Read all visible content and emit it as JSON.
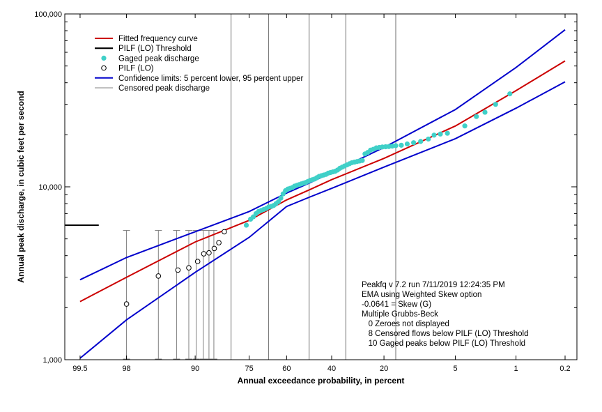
{
  "chart_data": {
    "type": "scatter",
    "title": "",
    "xlabel": "Annual exceedance probability, in percent",
    "ylabel": "Annual peak discharge, in cubic feet per second",
    "x_scale": "normal-probability",
    "x_reversed": true,
    "xlim": [
      99.7,
      0.13
    ],
    "x_ticks": [
      {
        "value": 99.5,
        "label": "99.5"
      },
      {
        "value": 98,
        "label": "98"
      },
      {
        "value": 90,
        "label": "90"
      },
      {
        "value": 75,
        "label": "75"
      },
      {
        "value": 60,
        "label": "60"
      },
      {
        "value": 40,
        "label": "40"
      },
      {
        "value": 20,
        "label": "20"
      },
      {
        "value": 5,
        "label": "5"
      },
      {
        "value": 1,
        "label": "1"
      },
      {
        "value": 0.2,
        "label": "0.2"
      }
    ],
    "y_scale": "log",
    "ylim": [
      1000,
      100000
    ],
    "y_ticks": [
      {
        "value": 1000,
        "label": "1,000"
      },
      {
        "value": 10000,
        "label": "10,000"
      },
      {
        "value": 100000,
        "label": "100,000"
      }
    ],
    "legend": {
      "placement": "top-left",
      "entries": [
        {
          "label": "Fitted frequency curve",
          "color": "#cc0000",
          "kind": "line"
        },
        {
          "label": "PILF (LO) Threshold",
          "color": "#000000",
          "kind": "thickline"
        },
        {
          "label": "Gaged peak discharge",
          "color": "#40d0c8",
          "kind": "dot"
        },
        {
          "label": "PILF (LO)",
          "color": "#000000",
          "kind": "circle"
        },
        {
          "label": "Confidence limits: 5 percent lower, 95 percent upper",
          "color": "#0000cc",
          "kind": "line"
        },
        {
          "label": "Censored peak discharge",
          "color": "#808080",
          "kind": "thinline"
        }
      ]
    },
    "series": [
      {
        "name": "Fitted frequency curve",
        "color": "#cc0000",
        "points": [
          [
            99.5,
            2170
          ],
          [
            98,
            3000
          ],
          [
            90,
            4800
          ],
          [
            75,
            6400
          ],
          [
            60,
            8400
          ],
          [
            50,
            9600
          ],
          [
            40,
            11000
          ],
          [
            20,
            14600
          ],
          [
            5,
            22500
          ],
          [
            1,
            36000
          ],
          [
            0.2,
            53500
          ]
        ]
      },
      {
        "name": "Confidence limits: 5 percent lower, 95 percent upper",
        "color": "#0000cc",
        "points": [
          [
            99.5,
            1020
          ],
          [
            98,
            1700
          ],
          [
            90,
            3200
          ],
          [
            75,
            5100
          ],
          [
            60,
            7700
          ],
          [
            50,
            8700
          ],
          [
            40,
            9800
          ],
          [
            20,
            13000
          ],
          [
            5,
            19000
          ],
          [
            1,
            28500
          ],
          [
            0.2,
            40500
          ]
        ]
      },
      {
        "name": "upper-confidence-limit",
        "color": "#0000cc",
        "points": [
          [
            99.5,
            2900
          ],
          [
            98,
            3900
          ],
          [
            90,
            5500
          ],
          [
            75,
            7200
          ],
          [
            60,
            9200
          ],
          [
            50,
            10500
          ],
          [
            40,
            12100
          ],
          [
            20,
            16900
          ],
          [
            5,
            28000
          ],
          [
            1,
            49000
          ],
          [
            0.2,
            81000
          ]
        ]
      },
      {
        "name": "Gaged peak discharge",
        "color": "#40d0c8",
        "points": [
          [
            76,
            6000
          ],
          [
            74.5,
            6500
          ],
          [
            73.5,
            6700
          ],
          [
            72.5,
            7000
          ],
          [
            71.5,
            7200
          ],
          [
            70.5,
            7300
          ],
          [
            69.5,
            7400
          ],
          [
            68.5,
            7500
          ],
          [
            67.5,
            7650
          ],
          [
            66.5,
            7700
          ],
          [
            65.5,
            7800
          ],
          [
            64.5,
            8000
          ],
          [
            63.5,
            8200
          ],
          [
            62.5,
            8600
          ],
          [
            61.5,
            9100
          ],
          [
            60.5,
            9500
          ],
          [
            59.5,
            9700
          ],
          [
            58.5,
            9800
          ],
          [
            57.5,
            9900
          ],
          [
            56.5,
            10100
          ],
          [
            55.5,
            10200
          ],
          [
            54.5,
            10300
          ],
          [
            53.5,
            10400
          ],
          [
            52.5,
            10500
          ],
          [
            51.5,
            10600
          ],
          [
            50.5,
            10750
          ],
          [
            49.5,
            10900
          ],
          [
            48.5,
            11000
          ],
          [
            47.5,
            11100
          ],
          [
            46.5,
            11300
          ],
          [
            45.5,
            11500
          ],
          [
            44.5,
            11600
          ],
          [
            43.5,
            11700
          ],
          [
            42.5,
            11800
          ],
          [
            41.5,
            12000
          ],
          [
            40.5,
            12100
          ],
          [
            39.5,
            12200
          ],
          [
            38.5,
            12300
          ],
          [
            37.5,
            12500
          ],
          [
            36.5,
            12800
          ],
          [
            35.5,
            13000
          ],
          [
            34.5,
            13200
          ],
          [
            33.5,
            13400
          ],
          [
            32.5,
            13600
          ],
          [
            31.5,
            13800
          ],
          [
            30.5,
            13900
          ],
          [
            29.5,
            14000
          ],
          [
            28.5,
            14100
          ],
          [
            27.5,
            14200
          ],
          [
            26.5,
            15500
          ],
          [
            25.5,
            15800
          ],
          [
            24.5,
            16300
          ],
          [
            23.5,
            16500
          ],
          [
            22.5,
            16800
          ],
          [
            21.5,
            16900
          ],
          [
            20.5,
            17000
          ],
          [
            19.5,
            17050
          ],
          [
            18.5,
            17100
          ],
          [
            17.5,
            17200
          ],
          [
            16.5,
            17300
          ],
          [
            15,
            17400
          ],
          [
            13.5,
            17700
          ],
          [
            12,
            18000
          ],
          [
            10.5,
            18300
          ],
          [
            9,
            18900
          ],
          [
            8,
            19900
          ],
          [
            7,
            20200
          ],
          [
            6,
            20400
          ],
          [
            4,
            22500
          ],
          [
            3,
            25500
          ],
          [
            2.4,
            27000
          ],
          [
            1.8,
            30000
          ],
          [
            1.2,
            34500
          ]
        ]
      },
      {
        "name": "PILF (LO)",
        "color": "#000000",
        "points": [
          [
            98,
            2100
          ],
          [
            95.5,
            3050
          ],
          [
            93,
            3300
          ],
          [
            91.2,
            3400
          ],
          [
            89.5,
            3700
          ],
          [
            88.2,
            4100
          ],
          [
            87,
            4150
          ],
          [
            85.7,
            4400
          ],
          [
            84.5,
            4750
          ],
          [
            83,
            5500
          ]
        ]
      }
    ],
    "pilf_threshold": {
      "name": "PILF (LO) Threshold",
      "y": 6000,
      "x_from": 99.7,
      "x_to": 99.1
    },
    "censored_intervals": [
      {
        "x": 98,
        "y_low": 1000,
        "y_high": 5600
      },
      {
        "x": 95.5,
        "y_low": 1000,
        "y_high": 5600
      },
      {
        "x": 93.2,
        "y_low": 1000,
        "y_high": 5600
      },
      {
        "x": 91.2,
        "y_low": 1000,
        "y_high": 5600
      },
      {
        "x": 89.8,
        "y_low": 1000,
        "y_high": 5600
      },
      {
        "x": 88.3,
        "y_low": 1000,
        "y_high": 5600
      },
      {
        "x": 87,
        "y_low": 1000,
        "y_high": 5600
      },
      {
        "x": 85.8,
        "y_low": 1000,
        "y_high": 5600
      }
    ],
    "censored_lines": [
      81,
      67.6,
      50,
      34,
      16.5
    ],
    "annotations": [
      "Peakfq v 7.2 run 7/11/2019 12:24:35 PM",
      "EMA using Weighted Skew option",
      "-0.0641 = Skew (G)",
      "Multiple Grubbs-Beck",
      "   0 Zeroes not displayed",
      "   8 Censored flows below PILF (LO) Threshold",
      "   10 Gaged peaks below PILF (LO) Threshold"
    ]
  }
}
